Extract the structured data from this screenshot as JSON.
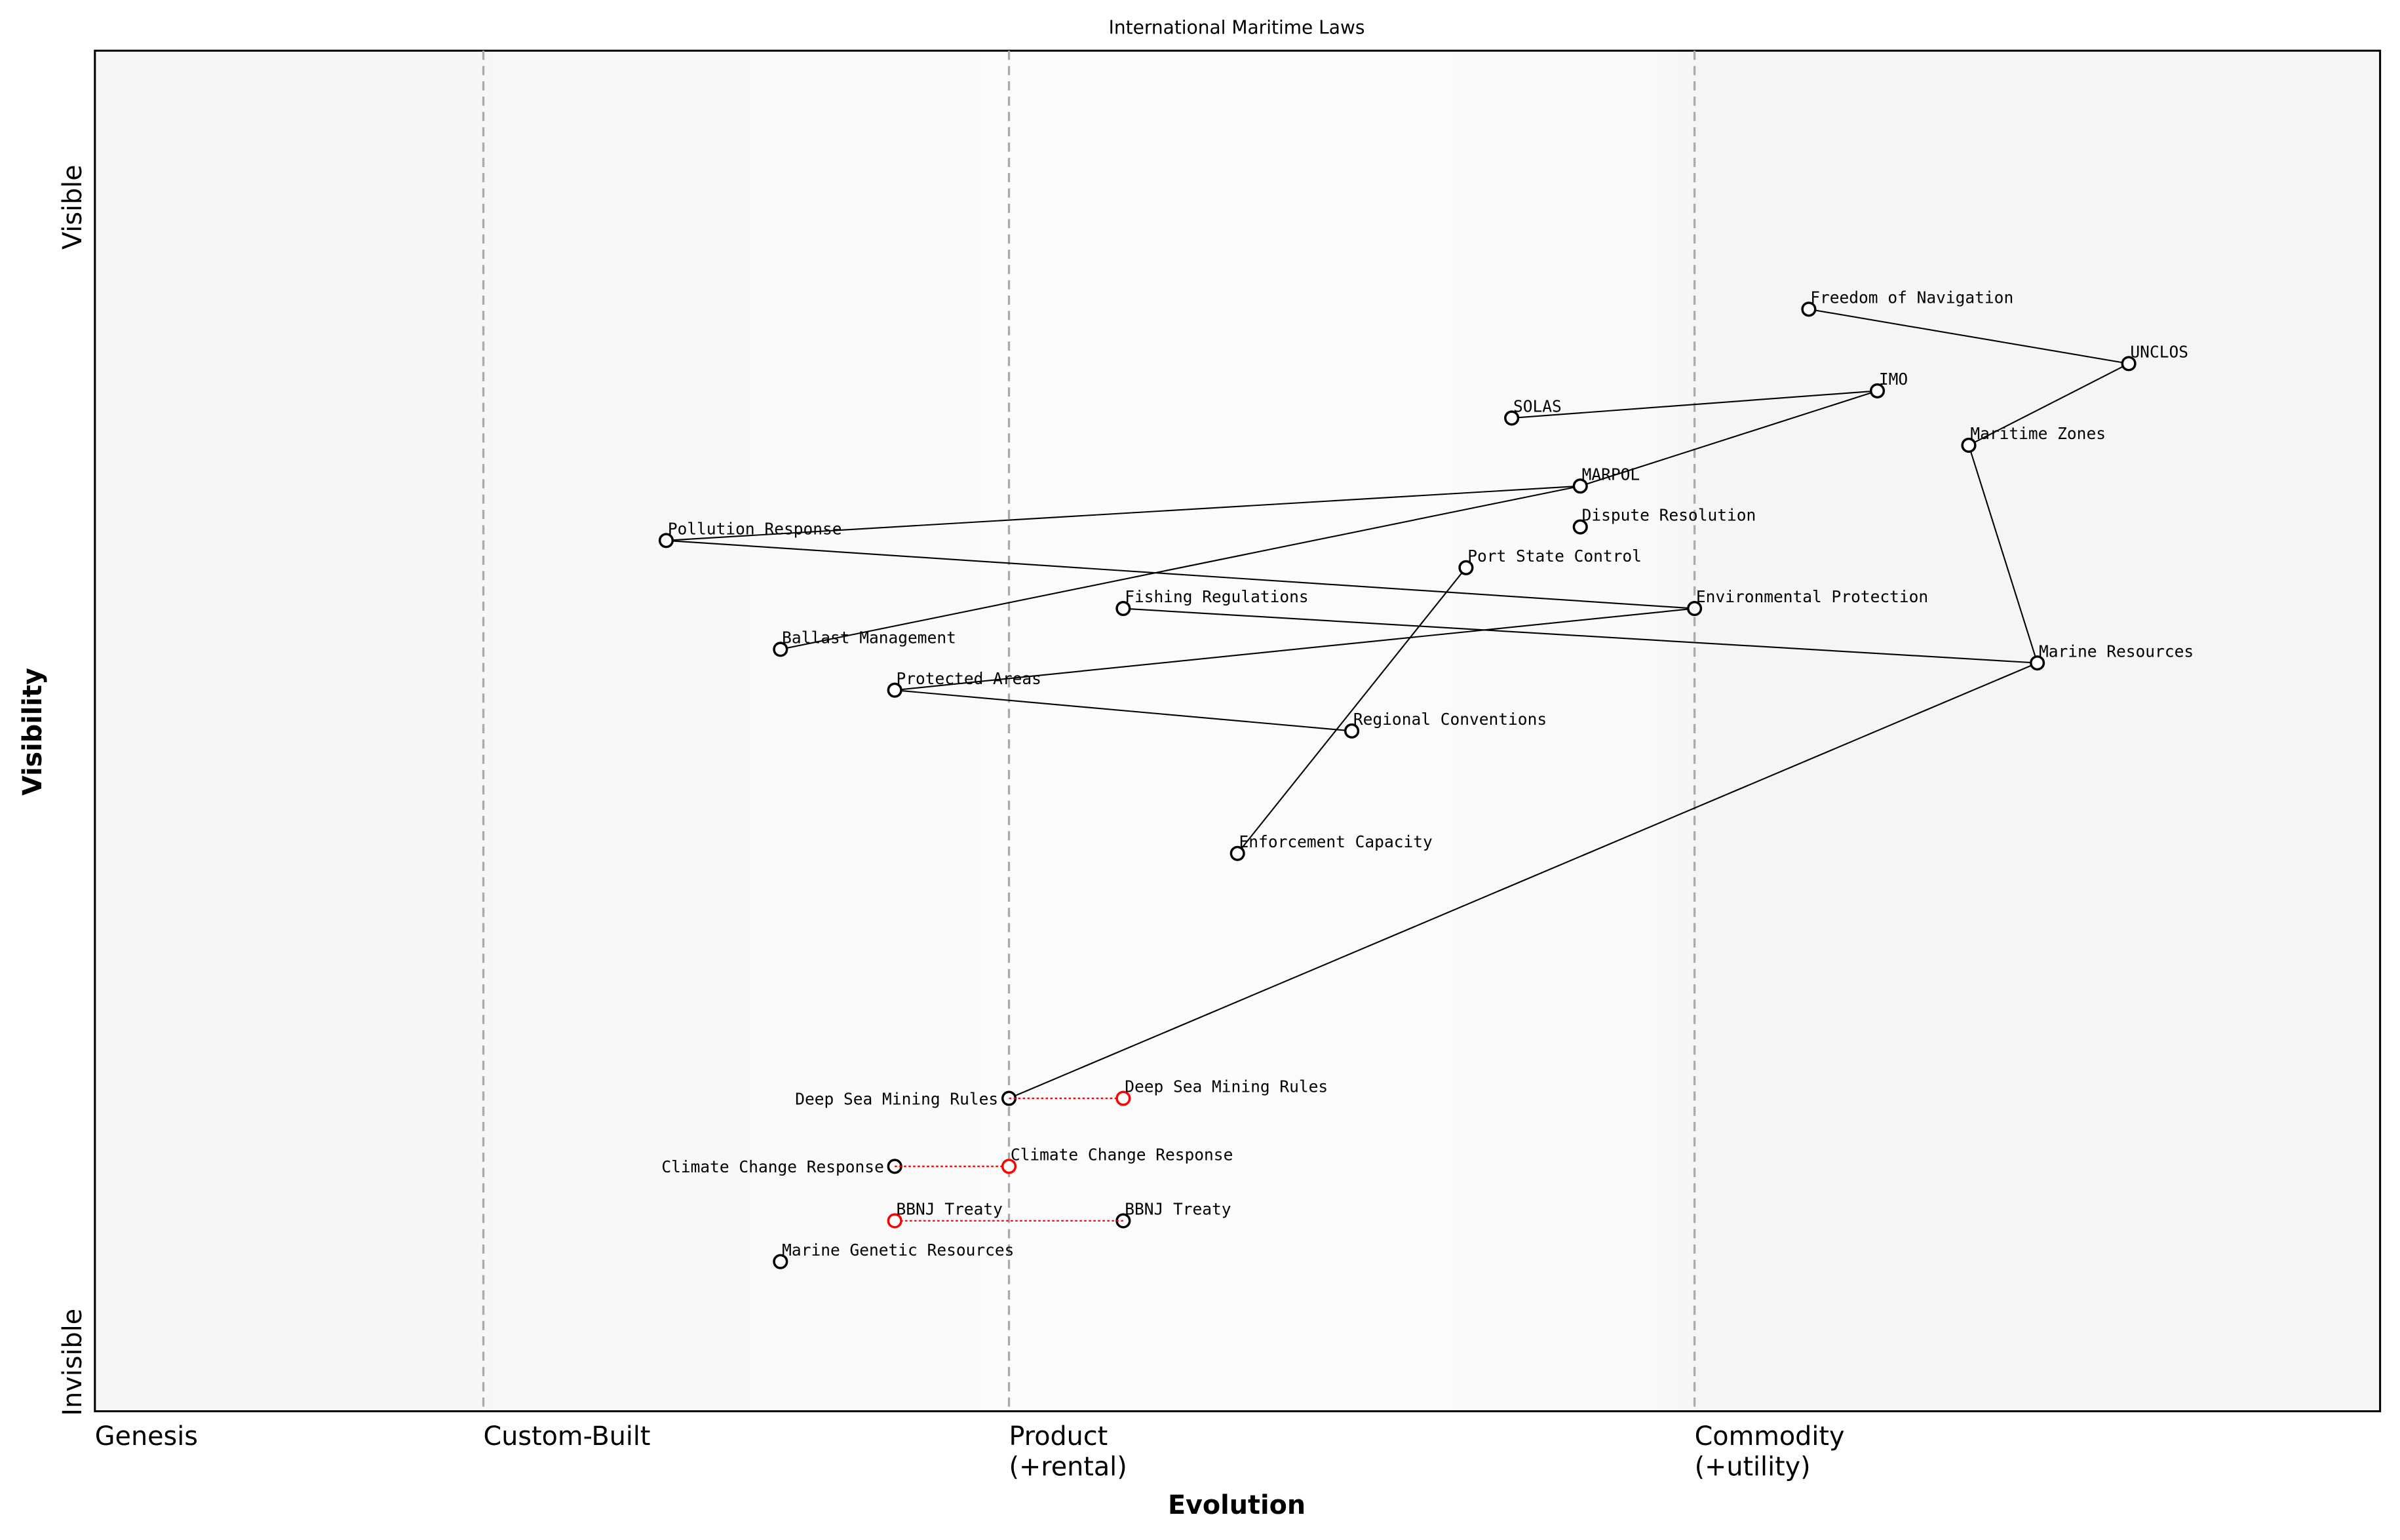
{
  "chart_data": {
    "type": "wardley-map",
    "title": "International Maritime Laws",
    "xlabel": "Evolution",
    "ylabel": "Visibility",
    "xlim": [
      0,
      1
    ],
    "ylim": [
      0,
      1
    ],
    "y_ticks": [
      {
        "label": "Invisible",
        "value": 0
      },
      {
        "label": "Visible",
        "value": 1
      }
    ],
    "stages": [
      {
        "label": "Genesis",
        "value": 0.0
      },
      {
        "label": "Custom-Built",
        "value": 0.17
      },
      {
        "label": "Product\n(+rental)",
        "value": 0.4
      },
      {
        "label": "Commodity\n(+utility)",
        "value": 0.7
      }
    ],
    "colors": {
      "node": "#000000",
      "evolved": "#ff0000",
      "stage_line": "#aaaaaa",
      "background": "#f5f5f5"
    },
    "components": [
      {
        "name": "Freedom of Navigation",
        "evolution": 0.75,
        "visibility": 0.81
      },
      {
        "name": "UNCLOS",
        "evolution": 0.89,
        "visibility": 0.77
      },
      {
        "name": "IMO",
        "evolution": 0.78,
        "visibility": 0.75
      },
      {
        "name": "SOLAS",
        "evolution": 0.62,
        "visibility": 0.73
      },
      {
        "name": "Maritime Zones",
        "evolution": 0.82,
        "visibility": 0.71
      },
      {
        "name": "MARPOL",
        "evolution": 0.65,
        "visibility": 0.68
      },
      {
        "name": "Dispute Resolution",
        "evolution": 0.65,
        "visibility": 0.65
      },
      {
        "name": "Pollution Response",
        "evolution": 0.25,
        "visibility": 0.64
      },
      {
        "name": "Port State Control",
        "evolution": 0.6,
        "visibility": 0.62
      },
      {
        "name": "Environmental Protection",
        "evolution": 0.7,
        "visibility": 0.59
      },
      {
        "name": "Fishing Regulations",
        "evolution": 0.45,
        "visibility": 0.59
      },
      {
        "name": "Ballast Management",
        "evolution": 0.3,
        "visibility": 0.56
      },
      {
        "name": "Marine Resources",
        "evolution": 0.85,
        "visibility": 0.55
      },
      {
        "name": "Protected Areas",
        "evolution": 0.35,
        "visibility": 0.53
      },
      {
        "name": "Regional Conventions",
        "evolution": 0.55,
        "visibility": 0.5
      },
      {
        "name": "Enforcement Capacity",
        "evolution": 0.5,
        "visibility": 0.41
      },
      {
        "name": "Deep Sea Mining Rules",
        "evolution": 0.4,
        "visibility": 0.23
      },
      {
        "name": "Climate Change Response",
        "evolution": 0.35,
        "visibility": 0.18
      },
      {
        "name": "BBNJ Treaty",
        "evolution": 0.45,
        "visibility": 0.14
      },
      {
        "name": "Marine Genetic Resources",
        "evolution": 0.3,
        "visibility": 0.11
      }
    ],
    "evolved": [
      {
        "name": "Deep Sea Mining Rules",
        "from": 0.4,
        "to": 0.45,
        "visibility": 0.23
      },
      {
        "name": "Climate Change Response",
        "from": 0.35,
        "to": 0.4,
        "visibility": 0.18
      },
      {
        "name": "BBNJ Treaty",
        "from": 0.45,
        "to": 0.35,
        "visibility": 0.14
      }
    ],
    "links": [
      [
        "Freedom of Navigation",
        "UNCLOS"
      ],
      [
        "UNCLOS",
        "Maritime Zones"
      ],
      [
        "SOLAS",
        "IMO"
      ],
      [
        "IMO",
        "MARPOL"
      ],
      [
        "MARPOL",
        "Ballast Management"
      ],
      [
        "MARPOL",
        "Pollution Response"
      ],
      [
        "Pollution Response",
        "Environmental Protection"
      ],
      [
        "Environmental Protection",
        "Protected Areas"
      ],
      [
        "Protected Areas",
        "Regional Conventions"
      ],
      [
        "Fishing Regulations",
        "Marine Resources"
      ],
      [
        "Maritime Zones",
        "Marine Resources"
      ],
      [
        "Marine Resources",
        "Deep Sea Mining Rules"
      ],
      [
        "Port State Control",
        "Enforcement Capacity"
      ]
    ]
  }
}
